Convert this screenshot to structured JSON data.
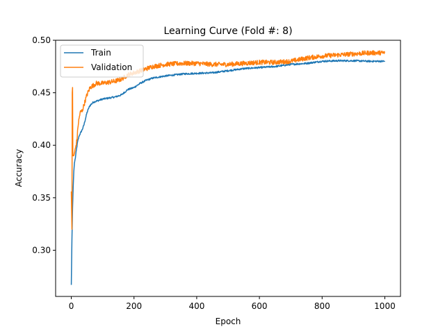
{
  "chart_data": {
    "type": "line",
    "title": "Learning Curve (Fold #: 8)",
    "xlabel": "Epoch",
    "ylabel": "Accuracy",
    "xlim": [
      -50,
      1050
    ],
    "ylim": [
      0.256,
      0.5
    ],
    "xticks": [
      0,
      200,
      400,
      600,
      800,
      1000
    ],
    "yticks": [
      0.3,
      0.35,
      0.4,
      0.45,
      0.5
    ],
    "ytick_labels": [
      "0.30",
      "0.35",
      "0.40",
      "0.45",
      "0.50"
    ],
    "legend_position": "top-left",
    "grid": false,
    "series": [
      {
        "name": "Train",
        "color": "#1f77b4",
        "points": [
          [
            0,
            0.267
          ],
          [
            2,
            0.31
          ],
          [
            4,
            0.34
          ],
          [
            6,
            0.36
          ],
          [
            8,
            0.375
          ],
          [
            10,
            0.383
          ],
          [
            13,
            0.388
          ],
          [
            16,
            0.395
          ],
          [
            20,
            0.403
          ],
          [
            25,
            0.409
          ],
          [
            30,
            0.412
          ],
          [
            35,
            0.415
          ],
          [
            40,
            0.419
          ],
          [
            45,
            0.425
          ],
          [
            50,
            0.431
          ],
          [
            55,
            0.435
          ],
          [
            60,
            0.438
          ],
          [
            70,
            0.441
          ],
          [
            80,
            0.442
          ],
          [
            90,
            0.443
          ],
          [
            100,
            0.444
          ],
          [
            120,
            0.445
          ],
          [
            140,
            0.446
          ],
          [
            160,
            0.448
          ],
          [
            180,
            0.453
          ],
          [
            200,
            0.455
          ],
          [
            220,
            0.459
          ],
          [
            240,
            0.462
          ],
          [
            260,
            0.464
          ],
          [
            280,
            0.465
          ],
          [
            300,
            0.466
          ],
          [
            330,
            0.467
          ],
          [
            360,
            0.468
          ],
          [
            400,
            0.4685
          ],
          [
            450,
            0.469
          ],
          [
            500,
            0.471
          ],
          [
            550,
            0.473
          ],
          [
            600,
            0.474
          ],
          [
            650,
            0.475
          ],
          [
            700,
            0.477
          ],
          [
            750,
            0.478
          ],
          [
            800,
            0.48
          ],
          [
            850,
            0.4805
          ],
          [
            900,
            0.4805
          ],
          [
            950,
            0.48
          ],
          [
            1000,
            0.48
          ]
        ]
      },
      {
        "name": "Validation",
        "color": "#ff7f0e",
        "points": [
          [
            0,
            0.356
          ],
          [
            2,
            0.32
          ],
          [
            3,
            0.45
          ],
          [
            4,
            0.455
          ],
          [
            5,
            0.39
          ],
          [
            8,
            0.39
          ],
          [
            12,
            0.395
          ],
          [
            18,
            0.405
          ],
          [
            22,
            0.42
          ],
          [
            28,
            0.431
          ],
          [
            35,
            0.433
          ],
          [
            42,
            0.44
          ],
          [
            50,
            0.448
          ],
          [
            60,
            0.455
          ],
          [
            70,
            0.457
          ],
          [
            80,
            0.459
          ],
          [
            100,
            0.459
          ],
          [
            120,
            0.46
          ],
          [
            140,
            0.461
          ],
          [
            160,
            0.463
          ],
          [
            180,
            0.467
          ],
          [
            200,
            0.469
          ],
          [
            220,
            0.471
          ],
          [
            240,
            0.473
          ],
          [
            260,
            0.475
          ],
          [
            280,
            0.476
          ],
          [
            300,
            0.477
          ],
          [
            350,
            0.478
          ],
          [
            400,
            0.478
          ],
          [
            450,
            0.477
          ],
          [
            500,
            0.477
          ],
          [
            550,
            0.478
          ],
          [
            600,
            0.479
          ],
          [
            650,
            0.479
          ],
          [
            700,
            0.48
          ],
          [
            750,
            0.483
          ],
          [
            800,
            0.485
          ],
          [
            850,
            0.486
          ],
          [
            900,
            0.487
          ],
          [
            950,
            0.488
          ],
          [
            1000,
            0.488
          ]
        ]
      }
    ]
  }
}
